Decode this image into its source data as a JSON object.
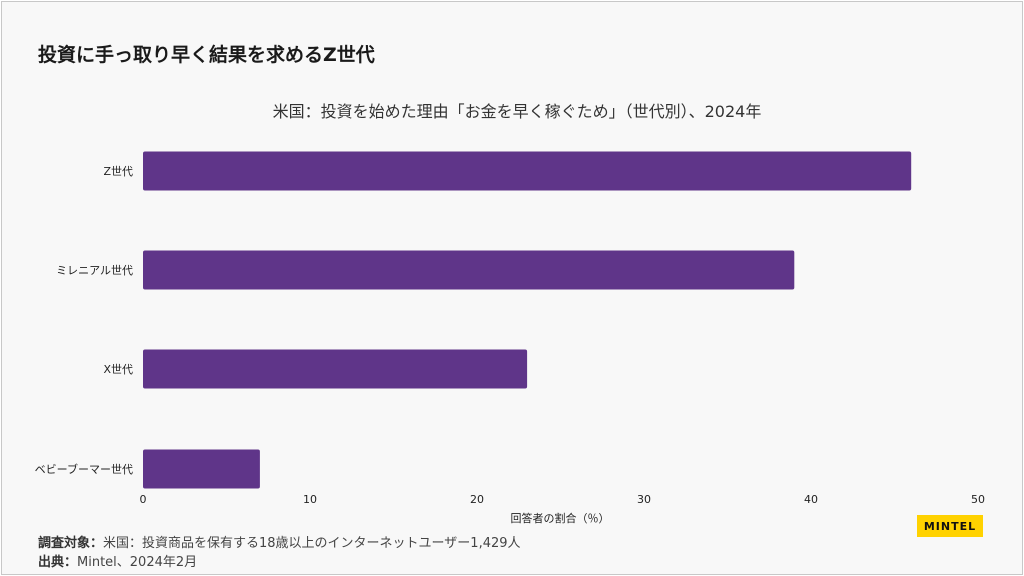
{
  "header": {
    "title": "投資に手っ取り早く結果を求めるZ世代"
  },
  "chart_data": {
    "type": "bar",
    "orientation": "horizontal",
    "title": "米国：投資を始めた理由「お金を早く稼ぐため」（世代別）、2024年",
    "categories": [
      "Z世代",
      "ミレニアル世代",
      "X世代",
      "ベビーブーマー世代"
    ],
    "values": [
      46,
      39,
      23,
      7
    ],
    "xlabel": "回答者の割合（％）",
    "ylabel": "",
    "xlim": [
      0,
      50
    ],
    "xticks": [
      "0",
      "10",
      "20",
      "30",
      "40",
      "50"
    ],
    "grid": false,
    "color": "#5f3589"
  },
  "footer": {
    "survey_label": "調査対象：",
    "survey_text": "米国：投資商品を保有する18歳以上のインターネットユーザー1,429人",
    "source_label": "出典：",
    "source_text": "Mintel、2024年2月"
  },
  "logo": {
    "text": "MINTEL"
  }
}
